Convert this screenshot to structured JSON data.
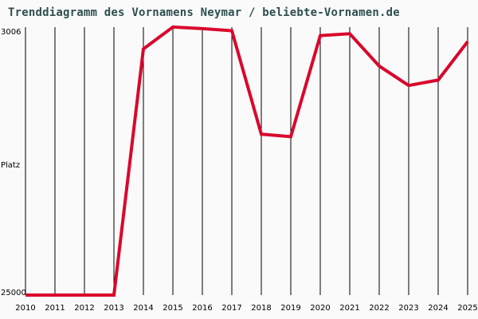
{
  "title": "Trenddiagramm des Vornamens Neymar / beliebte-Vornamen.de",
  "colors": {
    "line": "#d9072c",
    "grid": "#000000",
    "title": "#2f4f4f",
    "background": "#fafafa"
  },
  "axis": {
    "y_top_label": "3006",
    "y_mid_label": "Platz",
    "y_bottom_label": "25000"
  },
  "chart_data": {
    "type": "line",
    "title": "Trenddiagramm des Vornamens Neymar / beliebte-Vornamen.de",
    "xlabel": "",
    "ylabel": "Platz",
    "x": [
      "2010",
      "2011",
      "2012",
      "2013",
      "2014",
      "2015",
      "2016",
      "2017",
      "2018",
      "2019",
      "2020",
      "2021",
      "2022",
      "2023",
      "2024",
      "2025"
    ],
    "series": [
      {
        "name": "Neymar",
        "values": [
          25000,
          25000,
          25000,
          25000,
          4800,
          3000,
          3130,
          3300,
          11800,
          12000,
          3700,
          3550,
          6200,
          7800,
          7350,
          4200
        ]
      }
    ],
    "ylim": [
      25000,
      3006
    ],
    "y_inverted": true,
    "grid": "vertical",
    "legend": "none"
  }
}
